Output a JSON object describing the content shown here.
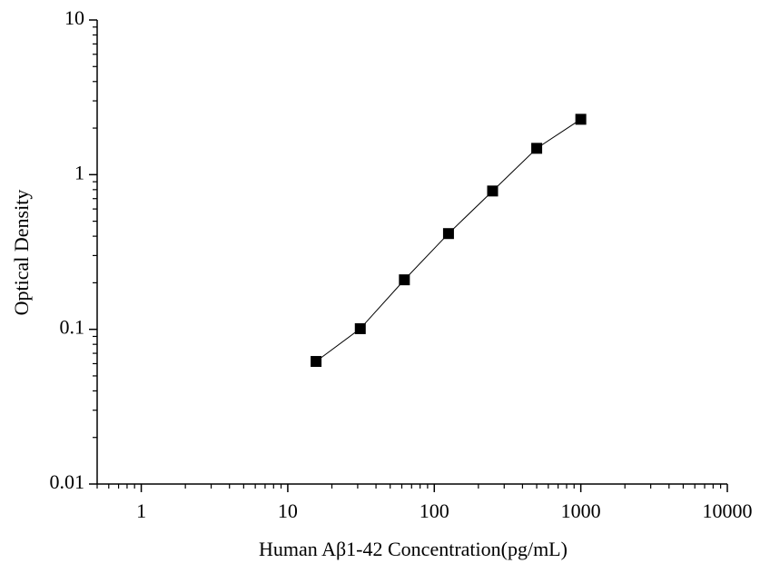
{
  "chart_data": {
    "type": "line",
    "log_x": true,
    "log_y": true,
    "x_label": "Human Aβ1-42 Concentration(pg/mL)",
    "y_label": "Optical Density",
    "x": [
      15.6,
      31.25,
      62.5,
      125,
      250,
      500,
      1000
    ],
    "series": [
      {
        "color": "#000000",
        "values": [
          0.062,
          0.101,
          0.209,
          0.416,
          0.784,
          1.48,
          2.28
        ]
      }
    ],
    "xlim": [
      0.5,
      10000
    ],
    "xticks": [
      1,
      10,
      100,
      1000,
      10000
    ],
    "ylim": [
      0.01,
      10
    ],
    "yticks": [
      0.01,
      0.1,
      1,
      10
    ]
  }
}
